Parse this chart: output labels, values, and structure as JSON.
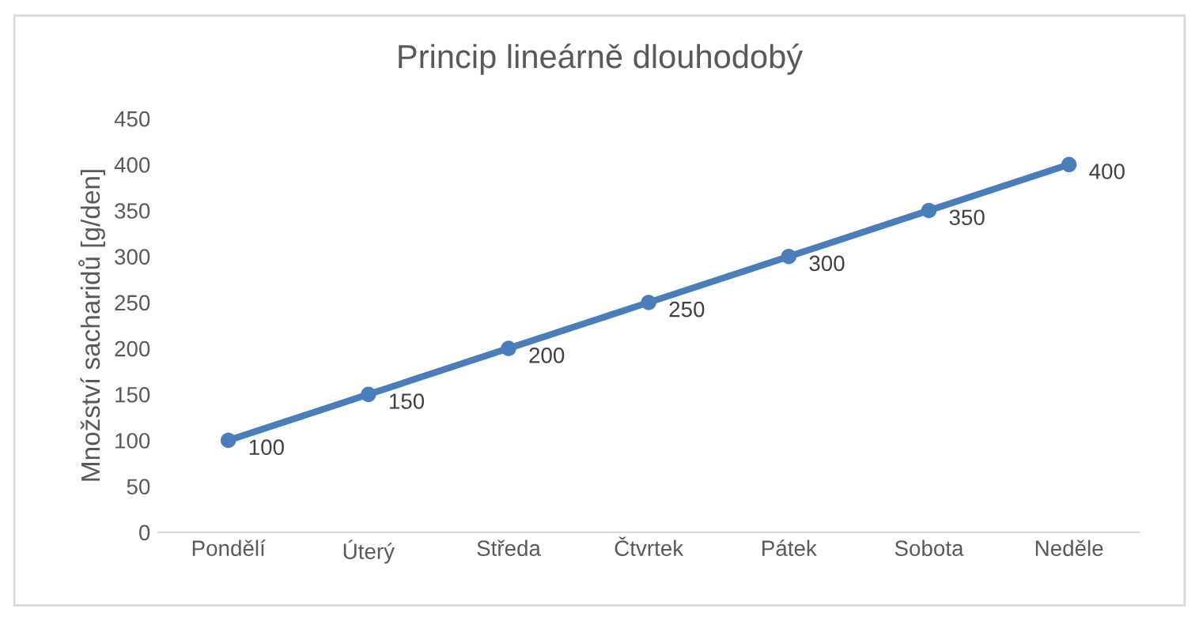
{
  "chart_data": {
    "type": "line",
    "title": "Princip lineárně dlouhodobý",
    "ylabel": "Množství sacharidů [g/den]",
    "categories": [
      "Pondělí",
      "Úterý",
      "Středa",
      "Čtvrtek",
      "Pátek",
      "Sobota",
      "Neděle"
    ],
    "series": [
      {
        "color": "#4a7ebb",
        "values": [
          100,
          150,
          200,
          250,
          300,
          350,
          400
        ]
      }
    ],
    "ylim": [
      0,
      450
    ],
    "yticks": [
      0,
      50,
      100,
      150,
      200,
      250,
      300,
      350,
      400,
      450
    ],
    "marker": "circle",
    "line_style": "solid",
    "data_labels": true
  }
}
